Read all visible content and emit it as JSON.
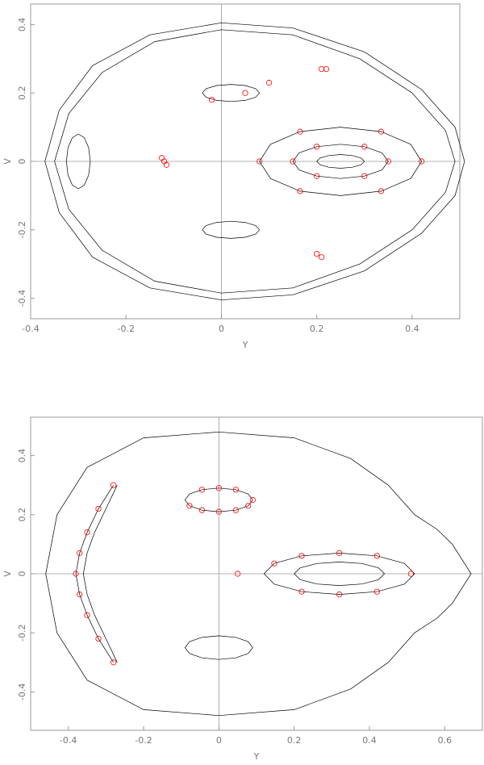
{
  "chart_data": [
    {
      "type": "phase",
      "xlabel": "Y",
      "ylabel": "V",
      "xlim": [
        -0.4,
        0.5
      ],
      "ylim": [
        -0.46,
        0.46
      ],
      "xticks": [
        -0.4,
        -0.2,
        0,
        0.2,
        0.4
      ],
      "yticks": [
        -0.4,
        -0.2,
        0,
        0.2,
        0.4
      ],
      "zero_lines": true,
      "series": [
        {
          "color": "#000000",
          "x": [
            -0.37,
            -0.34,
            -0.27,
            -0.15,
            0,
            0.15,
            0.3,
            0.42,
            0.49,
            0.51,
            0.49,
            0.42,
            0.3,
            0.15,
            0,
            -0.15,
            -0.27,
            -0.34,
            -0.37
          ],
          "values": [
            0,
            0.15,
            0.28,
            0.37,
            0.405,
            0.39,
            0.32,
            0.21,
            0.1,
            0,
            -0.1,
            -0.21,
            -0.32,
            -0.39,
            -0.405,
            -0.37,
            -0.28,
            -0.15,
            0
          ]
        },
        {
          "color": "#000000",
          "x": [
            -0.35,
            -0.32,
            -0.25,
            -0.14,
            0,
            0.15,
            0.29,
            0.4,
            0.47,
            0.49,
            0.47,
            0.4,
            0.29,
            0.15,
            0,
            -0.14,
            -0.25,
            -0.32,
            -0.35
          ],
          "values": [
            0,
            0.14,
            0.26,
            0.35,
            0.385,
            0.37,
            0.3,
            0.2,
            0.09,
            0,
            -0.09,
            -0.2,
            -0.3,
            -0.37,
            -0.385,
            -0.35,
            -0.26,
            -0.14,
            0
          ]
        },
        {
          "color": "#000000",
          "x": [
            0.3,
            0.293,
            0.275,
            0.25,
            0.225,
            0.207,
            0.2,
            0.207,
            0.225,
            0.25,
            0.275,
            0.293,
            0.3
          ],
          "values": [
            0,
            0.01,
            0.017,
            0.02,
            0.017,
            0.01,
            0,
            -0.01,
            -0.017,
            -0.02,
            -0.017,
            -0.01,
            0
          ]
        },
        {
          "color": "#000000",
          "x": [
            0.35,
            0.337,
            0.3,
            0.25,
            0.2,
            0.163,
            0.15,
            0.163,
            0.2,
            0.25,
            0.3,
            0.337,
            0.35
          ],
          "values": [
            0,
            0.025,
            0.043,
            0.05,
            0.043,
            0.025,
            0,
            -0.025,
            -0.043,
            -0.05,
            -0.043,
            -0.025,
            0
          ]
        },
        {
          "color": "#000000",
          "x": [
            0.42,
            0.397,
            0.335,
            0.25,
            0.165,
            0.103,
            0.08,
            0.103,
            0.165,
            0.25,
            0.335,
            0.397,
            0.42
          ],
          "values": [
            0,
            0.05,
            0.087,
            0.1,
            0.087,
            0.05,
            0,
            -0.05,
            -0.087,
            -0.1,
            -0.087,
            -0.05,
            0
          ]
        },
        {
          "color": "#000000",
          "x": [
            0.08,
            0.072,
            0.05,
            0.02,
            -0.01,
            -0.032,
            -0.04,
            -0.032,
            -0.01,
            0.02,
            0.05,
            0.072,
            0.08
          ],
          "values": [
            0.2,
            0.2125,
            0.2217,
            0.225,
            0.2217,
            0.2125,
            0.2,
            0.1875,
            0.1783,
            0.175,
            0.1783,
            0.1875,
            0.2
          ]
        },
        {
          "color": "#000000",
          "x": [
            0.08,
            0.072,
            0.05,
            0.02,
            -0.01,
            -0.032,
            -0.04,
            -0.032,
            -0.01,
            0.02,
            0.05,
            0.072,
            0.08
          ],
          "values": [
            -0.2,
            -0.2125,
            -0.2217,
            -0.225,
            -0.2217,
            -0.2125,
            -0.2,
            -0.1875,
            -0.1783,
            -0.175,
            -0.1783,
            -0.1875,
            -0.2
          ]
        },
        {
          "color": "#000000",
          "x": [
            -0.275,
            -0.2783,
            -0.2875,
            -0.3,
            -0.3125,
            -0.3217,
            -0.325,
            -0.3217,
            -0.3125,
            -0.3,
            -0.2875,
            -0.2783,
            -0.275
          ],
          "values": [
            0,
            0.04,
            0.0693,
            0.08,
            0.0693,
            0.04,
            0,
            -0.04,
            -0.0693,
            -0.08,
            -0.0693,
            -0.04,
            0
          ]
        },
        {
          "color": "#ff0000",
          "marker": "circle",
          "x": [
            0.35,
            0.3,
            0.2,
            0.15,
            0.2,
            0.3,
            0.42,
            0.335,
            0.165,
            0.08,
            0.165,
            0.335,
            -0.12,
            -0.125,
            -0.115,
            0.21,
            0.22,
            0.21,
            0.2,
            0.05,
            -0.02,
            0.1
          ],
          "values": [
            0,
            0.043,
            0.043,
            0,
            -0.043,
            -0.043,
            0,
            0.087,
            0.087,
            0,
            -0.087,
            -0.087,
            0,
            0.01,
            -0.01,
            0.27,
            0.27,
            -0.28,
            -0.27,
            0.2,
            0.18,
            0.23
          ]
        }
      ]
    },
    {
      "type": "phase",
      "xlabel": "Y",
      "ylabel": "V",
      "xlim": [
        -0.5,
        0.7
      ],
      "ylim": [
        -0.53,
        0.53
      ],
      "xticks": [
        -0.4,
        -0.2,
        0,
        0.2,
        0.4,
        0.6
      ],
      "yticks": [
        -0.4,
        -0.2,
        0,
        0.2,
        0.4
      ],
      "zero_lines": true,
      "series": [
        {
          "color": "#000000",
          "x": [
            -0.46,
            -0.43,
            -0.35,
            -0.2,
            0,
            0.2,
            0.35,
            0.45,
            0.52,
            0.58,
            0.62,
            0.67,
            0.62,
            0.58,
            0.52,
            0.45,
            0.35,
            0.2,
            0,
            -0.2,
            -0.35,
            -0.43,
            -0.46
          ],
          "values": [
            0,
            0.2,
            0.36,
            0.46,
            0.48,
            0.46,
            0.39,
            0.3,
            0.2,
            0.15,
            0.1,
            0,
            -0.1,
            -0.15,
            -0.2,
            -0.3,
            -0.39,
            -0.46,
            -0.48,
            -0.46,
            -0.36,
            -0.2,
            0
          ]
        },
        {
          "color": "#000000",
          "x": [
            0.09,
            0.078,
            0.045,
            0,
            -0.045,
            -0.078,
            -0.09,
            -0.078,
            -0.045,
            0,
            0.045,
            0.078,
            0.09
          ],
          "values": [
            0.25,
            0.27,
            0.2846,
            0.29,
            0.2846,
            0.27,
            0.25,
            0.23,
            0.2154,
            0.21,
            0.2154,
            0.23,
            0.25
          ]
        },
        {
          "color": "#000000",
          "x": [
            0.09,
            0.078,
            0.045,
            0,
            -0.045,
            -0.078,
            -0.09,
            -0.078,
            -0.045,
            0,
            0.045,
            0.078,
            0.09
          ],
          "values": [
            -0.25,
            -0.27,
            -0.2846,
            -0.29,
            -0.2846,
            -0.27,
            -0.25,
            -0.23,
            -0.2154,
            -0.21,
            -0.2154,
            -0.23,
            -0.25
          ]
        },
        {
          "color": "#000000",
          "x": [
            0.52,
            0.493,
            0.42,
            0.32,
            0.22,
            0.147,
            0.12,
            0.147,
            0.22,
            0.32,
            0.42,
            0.493,
            0.52
          ],
          "values": [
            0,
            0.035,
            0.0606,
            0.07,
            0.0606,
            0.035,
            0,
            -0.035,
            -0.0606,
            -0.07,
            -0.0606,
            -0.035,
            0
          ]
        },
        {
          "color": "#000000",
          "x": [
            0.44,
            0.424,
            0.38,
            0.32,
            0.26,
            0.216,
            0.2,
            0.216,
            0.26,
            0.32,
            0.38,
            0.424,
            0.44
          ],
          "values": [
            0,
            0.02,
            0.0346,
            0.04,
            0.0346,
            0.02,
            0,
            -0.02,
            -0.0346,
            -0.04,
            -0.0346,
            -0.02,
            0
          ]
        },
        {
          "color": "#000000",
          "x": [
            -0.28,
            -0.32,
            -0.35,
            -0.37,
            -0.38,
            -0.37,
            -0.35,
            -0.32,
            -0.28
          ],
          "values": [
            0.3,
            0.22,
            0.14,
            0.07,
            0,
            -0.07,
            -0.14,
            -0.22,
            -0.3
          ]
        },
        {
          "color": "#000000",
          "x": [
            -0.27,
            -0.3,
            -0.33,
            -0.35,
            -0.36,
            -0.35,
            -0.33,
            -0.3,
            -0.27
          ],
          "values": [
            0.3,
            0.22,
            0.14,
            0.07,
            0,
            -0.07,
            -0.14,
            -0.22,
            -0.3
          ]
        },
        {
          "color": "#ff0000",
          "marker": "circle",
          "x": [
            0.09,
            0.045,
            0,
            -0.045,
            -0.078,
            -0.045,
            0,
            0.045,
            0.078,
            0.42,
            0.32,
            0.22,
            0.147,
            0.22,
            0.32,
            0.42,
            0.05,
            0.51,
            -0.32,
            -0.35,
            -0.37,
            -0.38,
            -0.37,
            -0.35,
            -0.32,
            -0.28,
            -0.28
          ],
          "values": [
            0.25,
            0.2846,
            0.29,
            0.2846,
            0.23,
            0.2154,
            0.21,
            0.2154,
            0.23,
            0.0606,
            0.07,
            0.0606,
            0.035,
            -0.0606,
            -0.07,
            -0.0606,
            0,
            0,
            0.22,
            0.14,
            0.07,
            0,
            -0.07,
            -0.14,
            -0.22,
            0.3,
            -0.3
          ]
        }
      ]
    }
  ]
}
